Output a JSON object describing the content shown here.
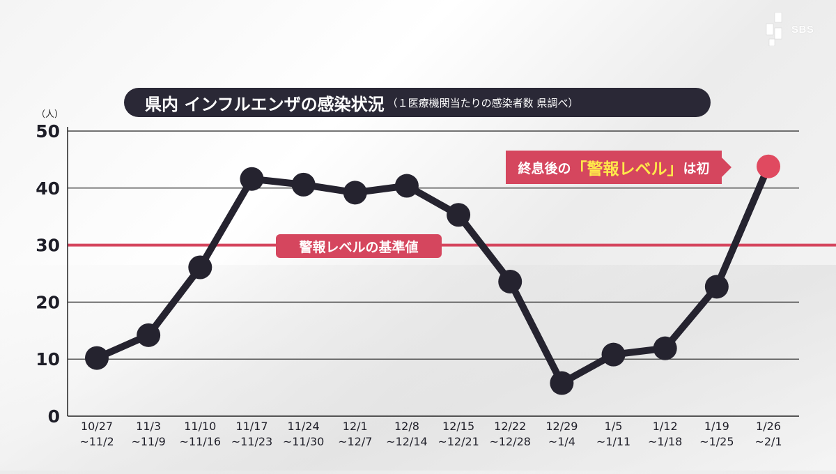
{
  "brand": {
    "name": "SBS"
  },
  "title": {
    "main": "県内 インフルエンザの感染状況",
    "sub": "（１医療機関当たりの感染者数 県調べ）"
  },
  "annotation": {
    "prefix": "終息後の",
    "highlight": "「警報レベル」",
    "suffix": "は初"
  },
  "threshold": {
    "label": "警報レベルの基準値",
    "value": 30
  },
  "colors": {
    "line": "#25232f",
    "threshold": "#d5465e",
    "highlight_point": "#e04a60",
    "grid": "#222222"
  },
  "chart_data": {
    "type": "line",
    "y_unit": "（人）",
    "ylim": [
      0,
      50
    ],
    "yticks": [
      "0",
      "10",
      "20",
      "30",
      "40",
      "50"
    ],
    "grid": true,
    "categories": [
      [
        "10/27",
        "~11/2"
      ],
      [
        "11/3",
        "~11/9"
      ],
      [
        "11/10",
        "~11/16"
      ],
      [
        "11/17",
        "~11/23"
      ],
      [
        "11/24",
        "~11/30"
      ],
      [
        "12/1",
        "~12/7"
      ],
      [
        "12/8",
        "~12/14"
      ],
      [
        "12/15",
        "~12/21"
      ],
      [
        "12/22",
        "~12/28"
      ],
      [
        "12/29",
        "~1/4"
      ],
      [
        "1/5",
        "~1/11"
      ],
      [
        "1/12",
        "~1/18"
      ],
      [
        "1/19",
        "~1/25"
      ],
      [
        "1/26",
        "~2/1"
      ]
    ],
    "series": [
      {
        "values": [
          10.2,
          14.2,
          26.1,
          41.6,
          40.6,
          39.2,
          40.4,
          35.3,
          23.6,
          5.8,
          10.8,
          11.9,
          22.7,
          43.8
        ]
      }
    ]
  }
}
